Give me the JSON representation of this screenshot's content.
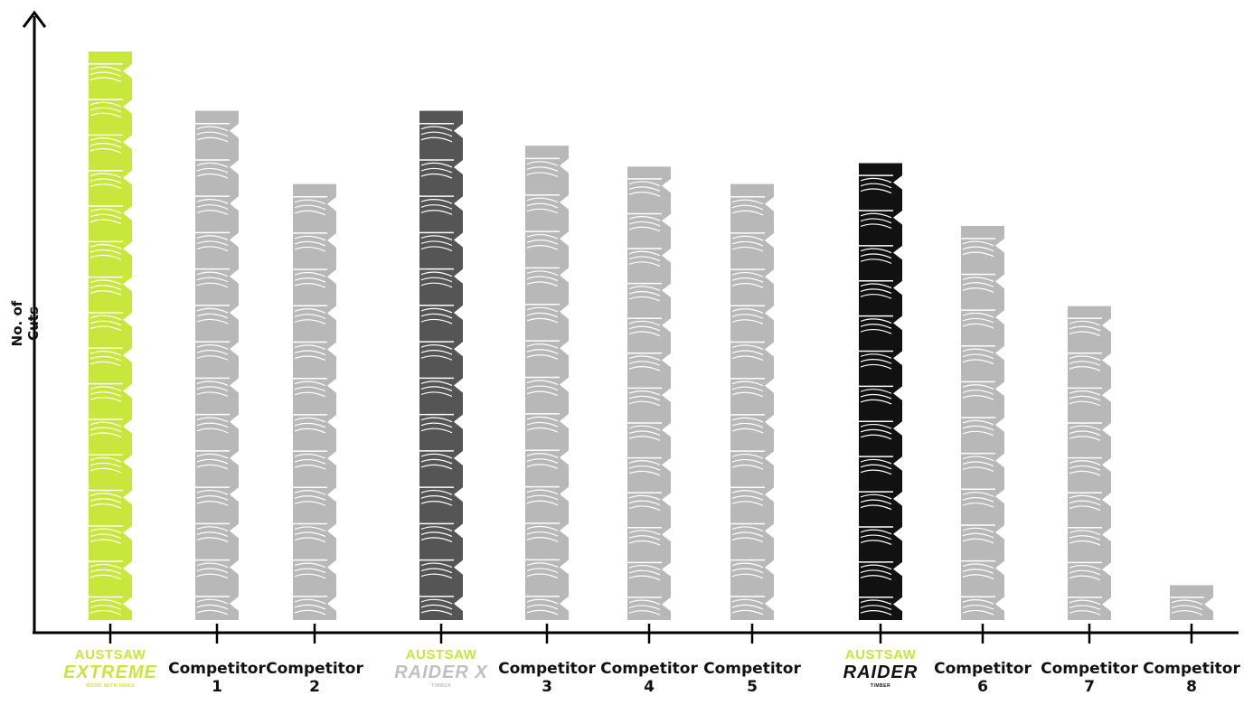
{
  "chart_data": {
    "type": "bar",
    "title": "",
    "ylabel": "No. of Cuts",
    "xlabel": "",
    "ylim": [
      0,
      17
    ],
    "grid": false,
    "legend": "none",
    "categories": [
      {
        "kind": "brand",
        "line1": "AUSTSAW",
        "line2": "EXTREME",
        "line3": "WOOD WITH NAILS",
        "color": "#c8e63c"
      },
      {
        "kind": "text",
        "line1": "Competitor",
        "line2": "1"
      },
      {
        "kind": "text",
        "line1": "Competitor",
        "line2": "2"
      },
      {
        "kind": "brand",
        "line1": "AUSTSAW",
        "line2": "RAIDER X",
        "line3": "TIMBER",
        "color": "#c8e63c",
        "color2": "#c0c0c0"
      },
      {
        "kind": "text",
        "line1": "Competitor",
        "line2": "3"
      },
      {
        "kind": "text",
        "line1": "Competitor",
        "line2": "4"
      },
      {
        "kind": "text",
        "line1": "Competitor",
        "line2": "5"
      },
      {
        "kind": "brand",
        "line1": "AUSTSAW",
        "line2": "RAIDER",
        "line3": "TIMBER",
        "color": "#c8e63c",
        "color2": "#111111"
      },
      {
        "kind": "text",
        "line1": "Competitor",
        "line2": "6"
      },
      {
        "kind": "text",
        "line1": "Competitor",
        "line2": "7"
      },
      {
        "kind": "text",
        "line1": "Competitor",
        "line2": "8"
      }
    ],
    "values": [
      16.3,
      14.6,
      12.5,
      14.6,
      13.6,
      13.0,
      12.5,
      13.1,
      11.3,
      9.0,
      1.0
    ],
    "bar_colors": [
      "#c8e63c",
      "#b8b8b8",
      "#b8b8b8",
      "#555555",
      "#b8b8b8",
      "#b8b8b8",
      "#b8b8b8",
      "#111111",
      "#b8b8b8",
      "#b8b8b8",
      "#b8b8b8"
    ]
  }
}
